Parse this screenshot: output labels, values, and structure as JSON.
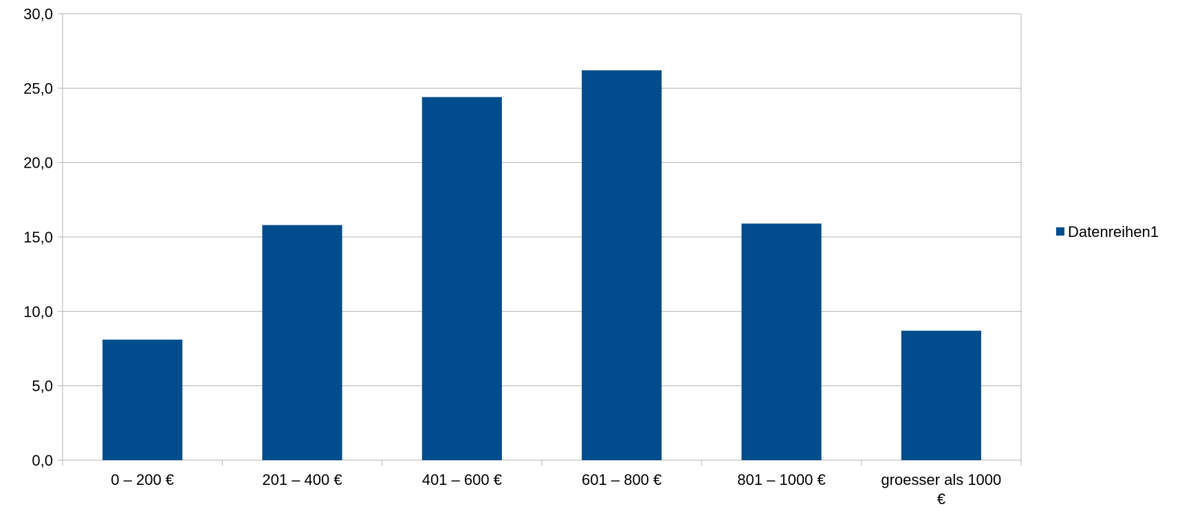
{
  "chart_data": {
    "type": "bar",
    "categories": [
      [
        "0 – 200 €"
      ],
      [
        "201 – 400 €"
      ],
      [
        "401 – 600 €"
      ],
      [
        "601 – 800 €"
      ],
      [
        "801 – 1000 €"
      ],
      [
        "groesser als 1000",
        "€"
      ]
    ],
    "series": [
      {
        "name": "Datenreihen1",
        "values": [
          8.1,
          15.8,
          24.4,
          26.2,
          15.9,
          8.7
        ],
        "color": "#004C8C"
      }
    ],
    "yticks": [
      "0,0",
      "5,0",
      "10,0",
      "15,0",
      "20,0",
      "25,0",
      "30,0"
    ],
    "ylim": [
      0,
      30
    ],
    "ystep": 5,
    "grid": true,
    "legend": "right",
    "title": "",
    "xlabel": "",
    "ylabel": ""
  }
}
